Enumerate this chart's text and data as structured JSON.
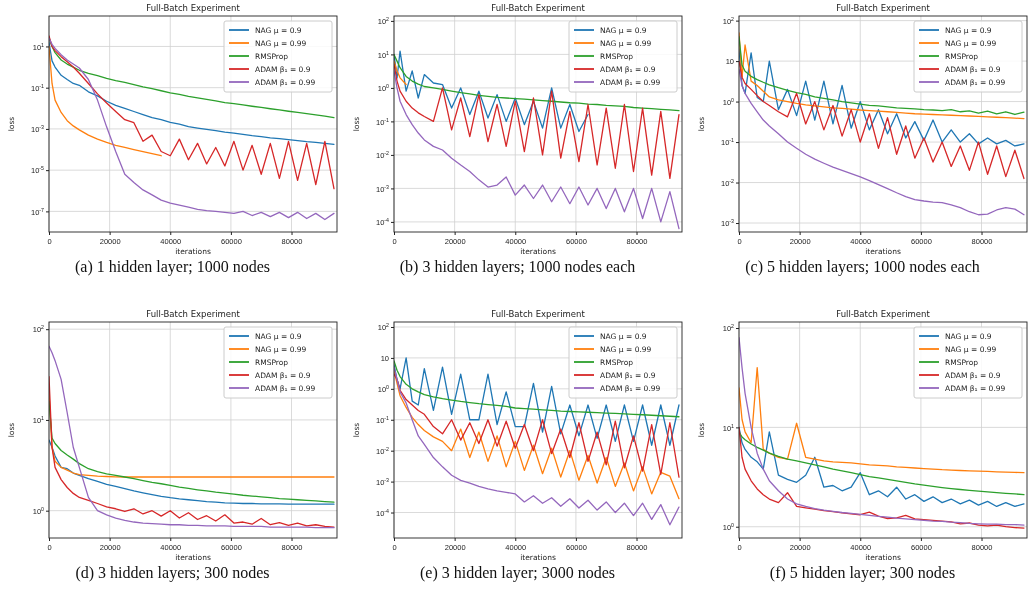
{
  "chart_data": [
    {
      "type": "line",
      "title": "Full-Batch Experiment",
      "xlabel": "iterations",
      "ylabel": "loss",
      "annotations": [
        "(a) 1 hidden layer; 1000 nodes"
      ],
      "log": "y",
      "grid": true,
      "legend": "top right",
      "xlim": [
        0,
        95000
      ],
      "xticks": [
        0,
        20000,
        40000,
        60000,
        80000
      ],
      "ylim": [
        1e-08,
        300
      ],
      "yticks": [
        {
          "value": 10,
          "label": "10$^{1}$"
        },
        {
          "value": 0.1,
          "label": "10$^{-1}$"
        },
        {
          "value": 0.001,
          "label": "10$^{-3}$"
        },
        {
          "value": 1e-05,
          "label": "10$^{-5}$"
        },
        {
          "value": 1e-07,
          "label": "10$^{-7}$"
        }
      ],
      "x": [
        0,
        1000,
        2000,
        4000,
        6000,
        8000,
        10000,
        13000,
        16000,
        19000,
        22000,
        25000,
        28000,
        31000,
        34000,
        37000,
        40000,
        43000,
        46000,
        49000,
        52000,
        55000,
        58000,
        61000,
        64000,
        67000,
        70000,
        73000,
        76000,
        79000,
        82000,
        85000,
        88000,
        91000,
        94000
      ],
      "series": [
        {
          "name": "NAG μ = 0.9",
          "color": "#1f77b4",
          "values": [
            16,
            2,
            1,
            0.4,
            0.25,
            0.16,
            0.13,
            0.063,
            0.04,
            0.022,
            0.014,
            0.01,
            0.007,
            0.005,
            0.0035,
            0.0028,
            0.0021,
            0.0017,
            0.0013,
            0.0011,
            0.00095,
            0.00083,
            0.0007,
            0.00063,
            0.00054,
            0.00047,
            0.00042,
            0.00037,
            0.00034,
            0.0003,
            0.00027,
            0.00024,
            0.00022,
            0.0002,
            0.00018
          ]
        },
        {
          "name": "NAG μ = 0.99",
          "color": "#ff7f0e",
          "values": [
            10,
            0.16,
            0.025,
            0.0063,
            0.0025,
            0.0014,
            0.0009,
            0.0005,
            0.00032,
            0.00022,
            0.00016,
            0.000126,
            0.0001,
            8e-05,
            6.3e-05,
            5e-05,
            null,
            null,
            null,
            null,
            null,
            null,
            null,
            null,
            null,
            null,
            null,
            null,
            null,
            null,
            null,
            null,
            null,
            null,
            null
          ]
        },
        {
          "name": "RMSProp",
          "color": "#2ca02c",
          "values": [
            25,
            10,
            5,
            2.2,
            1.4,
            1,
            0.7,
            0.5,
            0.38,
            0.28,
            0.22,
            0.18,
            0.14,
            0.11,
            0.089,
            0.071,
            0.056,
            0.047,
            0.038,
            0.032,
            0.027,
            0.023,
            0.019,
            0.017,
            0.0145,
            0.0126,
            0.011,
            0.0095,
            0.0083,
            0.0072,
            0.0063,
            0.0055,
            0.0048,
            0.0042,
            0.0035
          ]
        },
        {
          "name": "ADAM β₁ = 0.9",
          "color": "#d62728",
          "values": [
            32,
            10,
            6.3,
            3.2,
            1.8,
            1,
            0.5,
            0.16,
            0.05,
            0.018,
            0.007,
            0.0028,
            0.002,
            0.00025,
            0.0005,
            8e-05,
            5e-05,
            0.00032,
            3.2e-05,
            0.0002,
            2e-05,
            0.000126,
            1.6e-05,
            0.00025,
            1e-05,
            0.00016,
            6.3e-06,
            0.0002,
            4e-06,
            0.00025,
            3.2e-06,
            0.0002,
            2e-06,
            0.00025,
            1.26e-06
          ]
        },
        {
          "name": "ADAM β₁ = 0.99",
          "color": "#9467bd",
          "values": [
            25,
            12.6,
            8,
            4,
            2.2,
            1.4,
            0.9,
            0.25,
            0.025,
            0.00126,
            8e-05,
            6.3e-06,
            2.5e-06,
            1.1e-06,
            6.3e-07,
            3.5e-07,
            2.5e-07,
            2e-07,
            1.6e-07,
            1.26e-07,
            1.1e-07,
            1e-07,
            9e-08,
            8e-08,
            1e-07,
            6.3e-08,
            9e-08,
            5.6e-08,
            9e-08,
            5e-08,
            9e-08,
            4.5e-08,
            8e-08,
            4e-08,
            8e-08
          ]
        }
      ]
    },
    {
      "type": "line",
      "title": "Full-Batch Experiment",
      "xlabel": "iterations",
      "ylabel": "loss",
      "annotations": [
        "(b) 3 hidden layers; 1000 nodes each"
      ],
      "log": "y",
      "grid": true,
      "legend": "top right",
      "xlim": [
        0,
        95000
      ],
      "xticks": [
        0,
        20000,
        40000,
        60000,
        80000
      ],
      "ylim": [
        5e-05,
        140
      ],
      "yticks": [
        {
          "value": 100,
          "label": "10$^{2}$"
        },
        {
          "value": 10,
          "label": "10$^{1}$"
        },
        {
          "value": 1,
          "label": "10$^{0}$"
        },
        {
          "value": 0.1,
          "label": "10$^{-1}$"
        },
        {
          "value": 0.01,
          "label": "10$^{-2}$"
        },
        {
          "value": 0.001,
          "label": "10$^{-3}$"
        },
        {
          "value": 0.0001,
          "label": "10$^{-4}$"
        }
      ],
      "x": [
        0,
        1000,
        2000,
        4000,
        6000,
        8000,
        10000,
        13000,
        16000,
        19000,
        22000,
        25000,
        28000,
        31000,
        34000,
        37000,
        40000,
        43000,
        46000,
        49000,
        52000,
        55000,
        58000,
        61000,
        64000,
        67000,
        70000,
        73000,
        76000,
        79000,
        82000,
        85000,
        88000,
        91000,
        94000
      ],
      "series": [
        {
          "name": "NAG μ = 0.9",
          "color": "#1f77b4",
          "values": [
            10,
            2,
            12.6,
            0.8,
            3.2,
            0.5,
            2.5,
            1.4,
            1.26,
            0.25,
            1,
            0.16,
            0.8,
            0.126,
            0.63,
            0.1,
            0.5,
            0.08,
            0.4,
            0.063,
            1,
            0.063,
            0.32,
            0.05,
            0.16,
            null,
            null,
            null,
            null,
            null,
            null,
            null,
            null,
            null,
            null
          ]
        },
        {
          "name": "NAG μ = 0.99",
          "color": "#ff7f0e",
          "values": [
            6.3,
            3.2,
            2,
            1.26,
            null,
            null,
            null,
            null,
            null,
            null,
            null,
            null,
            null,
            null,
            null,
            null,
            null,
            null,
            null,
            null,
            null,
            null,
            null,
            null,
            null,
            null,
            null,
            null,
            null,
            null,
            null,
            null,
            null,
            null,
            null
          ]
        },
        {
          "name": "RMSProp",
          "color": "#2ca02c",
          "values": [
            10,
            6.3,
            4,
            2.2,
            1.6,
            1.3,
            1.1,
            1,
            0.9,
            0.8,
            0.72,
            0.66,
            0.6,
            0.56,
            0.52,
            0.5,
            0.48,
            0.46,
            0.44,
            0.42,
            0.4,
            0.38,
            0.36,
            0.35,
            0.33,
            0.32,
            0.3,
            0.29,
            0.28,
            0.26,
            0.25,
            0.24,
            0.23,
            0.22,
            0.21
          ]
        },
        {
          "name": "ADAM β₁ = 0.9",
          "color": "#d62728",
          "values": [
            5,
            1.6,
            0.8,
            0.4,
            0.25,
            0.18,
            0.14,
            0.1,
            1,
            0.056,
            0.5,
            0.035,
            0.63,
            0.025,
            0.32,
            0.018,
            0.4,
            0.0126,
            0.5,
            0.01,
            0.8,
            0.008,
            0.2,
            0.0063,
            0.32,
            0.005,
            0.25,
            0.004,
            0.32,
            0.0032,
            0.25,
            0.0025,
            0.2,
            0.002,
            0.16
          ]
        },
        {
          "name": "ADAM β₁ = 0.99",
          "color": "#9467bd",
          "values": [
            3.2,
            1,
            0.4,
            0.16,
            0.08,
            0.045,
            0.028,
            0.018,
            0.014,
            0.008,
            0.005,
            0.0032,
            0.0018,
            0.0011,
            0.00126,
            0.0022,
            0.00063,
            0.00126,
            0.0005,
            0.00126,
            0.0004,
            0.0011,
            0.00035,
            0.0011,
            0.00032,
            0.001,
            0.00025,
            0.001,
            0.0002,
            0.001,
            0.000126,
            0.001,
            0.0001,
            0.0008,
            6.3e-05
          ]
        }
      ]
    },
    {
      "type": "line",
      "title": "Full-Batch Experiment",
      "xlabel": "iterations",
      "ylabel": "loss",
      "annotations": [
        "(c) 5 hidden layers; 1000 nodes each"
      ],
      "log": "y",
      "grid": true,
      "legend": "top right",
      "xlim": [
        0,
        95000
      ],
      "xticks": [
        0,
        20000,
        40000,
        60000,
        80000
      ],
      "ylim": [
        0.0006,
        130
      ],
      "yticks": [
        {
          "value": 100,
          "label": "10$^{2}$"
        },
        10,
        {
          "value": 1,
          "label": "10$^{0}$"
        },
        {
          "value": 0.1,
          "label": "10$^{-1}$"
        },
        {
          "value": 0.01,
          "label": "10$^{-2}$"
        },
        {
          "value": 0.001,
          "label": "10$^{-3}$"
        }
      ],
      "x": [
        0,
        1000,
        2000,
        4000,
        6000,
        8000,
        10000,
        13000,
        16000,
        19000,
        22000,
        25000,
        28000,
        31000,
        34000,
        37000,
        40000,
        43000,
        46000,
        49000,
        52000,
        55000,
        58000,
        61000,
        64000,
        67000,
        70000,
        73000,
        76000,
        79000,
        82000,
        85000,
        88000,
        91000,
        94000
      ],
      "series": [
        {
          "name": "NAG μ = 0.9",
          "color": "#1f77b4",
          "values": [
            20,
            2.5,
            1.6,
            16,
            1.26,
            1,
            10,
            0.63,
            2,
            0.45,
            3.2,
            0.35,
            3.2,
            0.28,
            2.5,
            0.22,
            1,
            0.2,
            0.63,
            0.16,
            0.5,
            0.126,
            0.32,
            0.11,
            0.35,
            0.1,
            0.2,
            0.1,
            0.16,
            0.09,
            0.126,
            0.09,
            0.11,
            0.08,
            0.09
          ]
        },
        {
          "name": "NAG μ = 0.99",
          "color": "#ff7f0e",
          "values": [
            50,
            4,
            25,
            3.2,
            2.5,
            1.8,
            1.3,
            1.1,
            1,
            0.9,
            0.83,
            0.78,
            0.74,
            0.7,
            0.68,
            0.65,
            0.62,
            0.6,
            0.58,
            0.56,
            0.54,
            0.52,
            0.5,
            0.49,
            0.48,
            0.47,
            0.46,
            0.45,
            0.44,
            0.43,
            0.42,
            0.41,
            0.4,
            0.39,
            0.38
          ]
        },
        {
          "name": "RMSProp",
          "color": "#2ca02c",
          "values": [
            40,
            8,
            5.6,
            4.2,
            3.5,
            3,
            2.6,
            2.2,
            1.9,
            1.66,
            1.5,
            1.3,
            1.2,
            1.1,
            1,
            0.93,
            0.87,
            0.81,
            0.78,
            0.74,
            0.7,
            0.68,
            0.66,
            0.63,
            0.62,
            0.6,
            0.63,
            0.56,
            0.59,
            0.52,
            0.58,
            0.5,
            0.56,
            0.48,
            0.55
          ]
        },
        {
          "name": "ADAM β₁ = 0.9",
          "color": "#d62728",
          "values": [
            10,
            4,
            2.8,
            2,
            1.4,
            1,
            0.8,
            0.56,
            0.42,
            1.6,
            0.28,
            1,
            0.2,
            0.8,
            0.14,
            0.63,
            0.1,
            0.5,
            0.07,
            0.4,
            0.05,
            0.25,
            0.04,
            0.126,
            0.032,
            0.1,
            0.025,
            0.08,
            0.02,
            0.1,
            0.016,
            0.08,
            0.014,
            0.063,
            0.0126
          ]
        },
        {
          "name": "ADAM β₁ = 0.99",
          "color": "#9467bd",
          "values": [
            6.3,
            2.5,
            1.6,
            0.9,
            0.56,
            0.35,
            0.25,
            0.16,
            0.1,
            0.07,
            0.05,
            0.038,
            0.03,
            0.024,
            0.02,
            0.0166,
            0.0138,
            0.0112,
            0.0089,
            0.0071,
            0.0056,
            0.0045,
            0.0038,
            0.0035,
            0.0033,
            0.0032,
            0.0028,
            0.0024,
            0.0019,
            0.0016,
            0.00166,
            0.0021,
            0.0024,
            0.0022,
            0.0016
          ]
        }
      ]
    },
    {
      "type": "line",
      "title": "Full-Batch Experiment",
      "xlabel": "iterations",
      "ylabel": "loss",
      "annotations": [
        "(d) 3 hidden layers; 300 nodes"
      ],
      "log": "y",
      "grid": true,
      "legend": "top right",
      "xlim": [
        0,
        95000
      ],
      "xticks": [
        0,
        20000,
        40000,
        60000,
        80000
      ],
      "ylim": [
        0.5,
        120
      ],
      "yticks": [
        {
          "value": 100,
          "label": "10$^{2}$"
        },
        {
          "value": 10,
          "label": "10$^{1}$"
        },
        {
          "value": 1,
          "label": "10$^{0}$"
        }
      ],
      "x": [
        0,
        1000,
        2000,
        4000,
        6000,
        8000,
        10000,
        13000,
        16000,
        19000,
        22000,
        25000,
        28000,
        31000,
        34000,
        37000,
        40000,
        43000,
        46000,
        49000,
        52000,
        55000,
        58000,
        61000,
        64000,
        67000,
        70000,
        73000,
        76000,
        79000,
        82000,
        85000,
        88000,
        91000,
        94000
      ],
      "series": [
        {
          "name": "NAG μ = 0.9",
          "color": "#1f77b4",
          "values": [
            6,
            5,
            4,
            3,
            2.9,
            2.6,
            2.45,
            2.25,
            2.1,
            1.95,
            1.85,
            1.75,
            1.65,
            1.57,
            1.5,
            1.44,
            1.39,
            1.35,
            1.32,
            1.29,
            1.26,
            1.24,
            1.22,
            1.21,
            1.2,
            1.2,
            1.19,
            1.19,
            1.19,
            1.18,
            1.18,
            1.18,
            1.18,
            1.18,
            1.18
          ]
        },
        {
          "name": "NAG μ = 0.99",
          "color": "#ff7f0e",
          "values": [
            20,
            5,
            3.5,
            3,
            2.8,
            2.6,
            2.5,
            2.45,
            2.4,
            2.38,
            2.36,
            2.35,
            2.35,
            2.35,
            2.35,
            2.35,
            2.35,
            2.35,
            2.35,
            2.35,
            2.35,
            2.35,
            2.35,
            2.35,
            2.35,
            2.35,
            2.35,
            2.35,
            2.35,
            2.35,
            2.35,
            2.35,
            2.35,
            2.35,
            2.35
          ]
        },
        {
          "name": "RMSProp",
          "color": "#2ca02c",
          "values": [
            16,
            6.3,
            5.5,
            4.6,
            4.1,
            3.7,
            3.3,
            2.9,
            2.7,
            2.55,
            2.45,
            2.35,
            2.25,
            2.15,
            2.05,
            1.98,
            1.9,
            1.82,
            1.76,
            1.7,
            1.65,
            1.6,
            1.56,
            1.52,
            1.48,
            1.45,
            1.42,
            1.39,
            1.36,
            1.34,
            1.32,
            1.3,
            1.28,
            1.26,
            1.24
          ]
        },
        {
          "name": "ADAM β₁ = 0.9",
          "color": "#d62728",
          "values": [
            30,
            5,
            3,
            2.2,
            1.8,
            1.55,
            1.4,
            1.3,
            1.2,
            1.1,
            1.05,
            0.98,
            1.05,
            0.92,
            1,
            0.87,
            1,
            0.83,
            0.95,
            0.8,
            0.88,
            0.77,
            0.9,
            0.73,
            0.75,
            0.71,
            0.82,
            0.7,
            0.74,
            0.69,
            0.73,
            0.68,
            0.7,
            0.67,
            0.66
          ]
        },
        {
          "name": "ADAM β₁ = 0.99",
          "color": "#9467bd",
          "values": [
            65,
            55,
            45,
            28,
            12,
            5,
            3,
            1.4,
            1,
            0.9,
            0.83,
            0.78,
            0.75,
            0.73,
            0.72,
            0.71,
            0.7,
            0.7,
            0.69,
            0.69,
            0.68,
            0.68,
            0.68,
            0.67,
            0.67,
            0.67,
            0.67,
            0.66,
            0.66,
            0.66,
            0.66,
            0.66,
            0.65,
            0.65,
            0.65
          ]
        }
      ]
    },
    {
      "type": "line",
      "title": "Full-Batch Experiment",
      "xlabel": "iterations",
      "ylabel": "loss",
      "annotations": [
        "(e) 3 hidden layer; 3000 nodes"
      ],
      "log": "y",
      "grid": true,
      "legend": "top right",
      "xlim": [
        0,
        95000
      ],
      "xticks": [
        0,
        20000,
        40000,
        60000,
        80000
      ],
      "ylim": [
        1.5e-05,
        145
      ],
      "yticks": [
        {
          "value": 100,
          "label": "10$^{2}$"
        },
        10,
        {
          "value": 1,
          "label": "10$^{0}$"
        },
        {
          "value": 0.1,
          "label": "10$^{-1}$"
        },
        {
          "value": 0.01,
          "label": "10$^{-2}$"
        },
        {
          "value": 0.001,
          "label": "10$^{-3}$"
        },
        {
          "value": 0.0001,
          "label": "10$^{-4}$"
        }
      ],
      "x": [
        0,
        1000,
        2000,
        4000,
        6000,
        8000,
        10000,
        13000,
        16000,
        19000,
        22000,
        25000,
        28000,
        31000,
        34000,
        37000,
        40000,
        43000,
        46000,
        49000,
        52000,
        55000,
        58000,
        61000,
        64000,
        67000,
        70000,
        73000,
        76000,
        79000,
        82000,
        85000,
        88000,
        91000,
        94000
      ],
      "series": [
        {
          "name": "NAG μ = 0.9",
          "color": "#1f77b4",
          "values": [
            6,
            2,
            1,
            10,
            0.4,
            0.3,
            4.5,
            0.2,
            5,
            0.15,
            3,
            0.1,
            0.1,
            3,
            0.07,
            0.8,
            0.06,
            0.06,
            1.5,
            0.04,
            1.2,
            0.035,
            0.3,
            0.03,
            0.3,
            0.025,
            0.3,
            0.02,
            0.3,
            0.02,
            0.3,
            0.015,
            0.3,
            0.015,
            0.3
          ]
        },
        {
          "name": "NAG μ = 0.99",
          "color": "#ff7f0e",
          "values": [
            4,
            1.5,
            0.6,
            0.25,
            0.12,
            0.07,
            0.045,
            0.028,
            0.02,
            0.01,
            0.05,
            0.006,
            0.04,
            0.0045,
            0.03,
            0.003,
            0.02,
            0.0023,
            0.015,
            0.0018,
            0.012,
            0.0014,
            0.01,
            0.0011,
            0.007,
            0.0009,
            0.006,
            0.0007,
            0.004,
            0.0005,
            0.003,
            0.0004,
            0.002,
            0.0015,
            0.00028
          ]
        },
        {
          "name": "RMSProp",
          "color": "#2ca02c",
          "values": [
            8,
            4,
            2.5,
            1.4,
            1,
            0.8,
            0.65,
            0.55,
            0.48,
            0.43,
            0.39,
            0.36,
            0.33,
            0.31,
            0.29,
            0.27,
            0.24,
            0.23,
            0.22,
            0.21,
            0.2,
            0.19,
            0.185,
            0.18,
            0.175,
            0.17,
            0.165,
            0.16,
            0.155,
            0.15,
            0.145,
            0.14,
            0.135,
            0.13,
            0.125
          ]
        },
        {
          "name": "ADAM β₁ = 0.9",
          "color": "#d62728",
          "values": [
            3,
            2,
            0.9,
            0.45,
            0.3,
            0.2,
            0.15,
            0.06,
            0.035,
            0.1,
            0.022,
            0.08,
            0.017,
            0.1,
            0.014,
            0.09,
            0.012,
            0.07,
            0.01,
            0.1,
            0.008,
            0.05,
            0.006,
            0.08,
            0.0045,
            0.04,
            0.0035,
            0.09,
            0.0028,
            0.03,
            0.0022,
            0.07,
            0.0017,
            0.08,
            0.0014
          ]
        },
        {
          "name": "ADAM β₁ = 0.99",
          "color": "#9467bd",
          "values": [
            5,
            2,
            0.8,
            0.35,
            0.1,
            0.03,
            0.016,
            0.006,
            0.003,
            0.0016,
            0.0011,
            0.0009,
            0.0007,
            0.00058,
            0.0005,
            0.00045,
            0.0004,
            0.00022,
            0.00035,
            0.0002,
            0.0003,
            0.00016,
            0.00028,
            0.00014,
            0.00025,
            0.00012,
            0.00022,
            0.0001,
            0.0002,
            8e-05,
            0.0002,
            6e-05,
            0.00018,
            4e-05,
            0.00015
          ]
        }
      ]
    },
    {
      "type": "line",
      "title": "Full-Batch Experiment",
      "xlabel": "iterations",
      "ylabel": "loss",
      "annotations": [
        "(f) 5 hidden layer; 300 nodes"
      ],
      "log": "y",
      "grid": true,
      "legend": "top right",
      "xlim": [
        0,
        95000
      ],
      "xticks": [
        0,
        20000,
        40000,
        60000,
        80000
      ],
      "ylim": [
        0.77,
        115
      ],
      "yticks": [
        {
          "value": 100,
          "label": "10$^{2}$"
        },
        {
          "value": 10,
          "label": "10$^{1}$"
        },
        {
          "value": 1,
          "label": "10$^{0}$"
        }
      ],
      "x": [
        0,
        1000,
        2000,
        4000,
        6000,
        8000,
        10000,
        13000,
        16000,
        19000,
        22000,
        25000,
        28000,
        31000,
        34000,
        37000,
        40000,
        43000,
        46000,
        49000,
        52000,
        55000,
        58000,
        61000,
        64000,
        67000,
        70000,
        73000,
        76000,
        79000,
        82000,
        85000,
        88000,
        91000,
        94000
      ],
      "series": [
        {
          "name": "NAG μ = 0.9",
          "color": "#1f77b4",
          "values": [
            10,
            7,
            6,
            5,
            4.5,
            3.8,
            9,
            3.3,
            3,
            2.8,
            3.3,
            5,
            2.5,
            2.6,
            2.3,
            2.5,
            3.5,
            2.1,
            2.3,
            2,
            2.5,
            1.9,
            2.1,
            1.8,
            2,
            1.75,
            1.9,
            1.7,
            1.85,
            1.65,
            1.8,
            1.6,
            1.75,
            1.6,
            1.7
          ]
        },
        {
          "name": "NAG μ = 0.99",
          "color": "#ff7f0e",
          "values": [
            25,
            12,
            9,
            7,
            40,
            6,
            5.5,
            5,
            4.8,
            11,
            5,
            4.8,
            4.6,
            4.5,
            4.45,
            4.4,
            4.3,
            4.2,
            4.15,
            4.1,
            4,
            3.95,
            3.9,
            3.85,
            3.8,
            3.75,
            3.72,
            3.68,
            3.65,
            3.62,
            3.6,
            3.57,
            3.55,
            3.52,
            3.5
          ]
        },
        {
          "name": "RMSProp",
          "color": "#2ca02c",
          "values": [
            9,
            8,
            7.5,
            6.8,
            6.3,
            5.9,
            5.5,
            5.1,
            4.8,
            4.6,
            4.4,
            4.2,
            4,
            3.8,
            3.65,
            3.5,
            3.35,
            3.2,
            3.1,
            3,
            2.9,
            2.8,
            2.7,
            2.62,
            2.55,
            2.48,
            2.42,
            2.37,
            2.32,
            2.28,
            2.24,
            2.2,
            2.17,
            2.14,
            2.1
          ]
        },
        {
          "name": "ADAM β₁ = 0.9",
          "color": "#d62728",
          "values": [
            10,
            5,
            3.8,
            2.9,
            2.4,
            2.1,
            1.9,
            1.75,
            2.2,
            1.6,
            1.55,
            1.5,
            1.45,
            1.42,
            1.38,
            1.35,
            1.32,
            1.4,
            1.28,
            1.21,
            1.23,
            1.3,
            1.2,
            1.18,
            1.16,
            1.14,
            1.12,
            1.07,
            1.09,
            1.04,
            1.02,
            1.04,
            1,
            0.98,
            0.97
          ]
        },
        {
          "name": "ADAM β₁ = 0.99",
          "color": "#9467bd",
          "values": [
            80,
            40,
            22,
            10,
            5.5,
            3.8,
            2.9,
            2.3,
            1.9,
            1.7,
            1.6,
            1.52,
            1.47,
            1.43,
            1.39,
            1.36,
            1.33,
            1.3,
            1.27,
            1.25,
            1.22,
            1.2,
            1.18,
            1.16,
            1.14,
            1.13,
            1.11,
            1.1,
            1.08,
            1.07,
            1.06,
            1.06,
            1.05,
            1.05,
            1.04
          ]
        }
      ]
    }
  ]
}
